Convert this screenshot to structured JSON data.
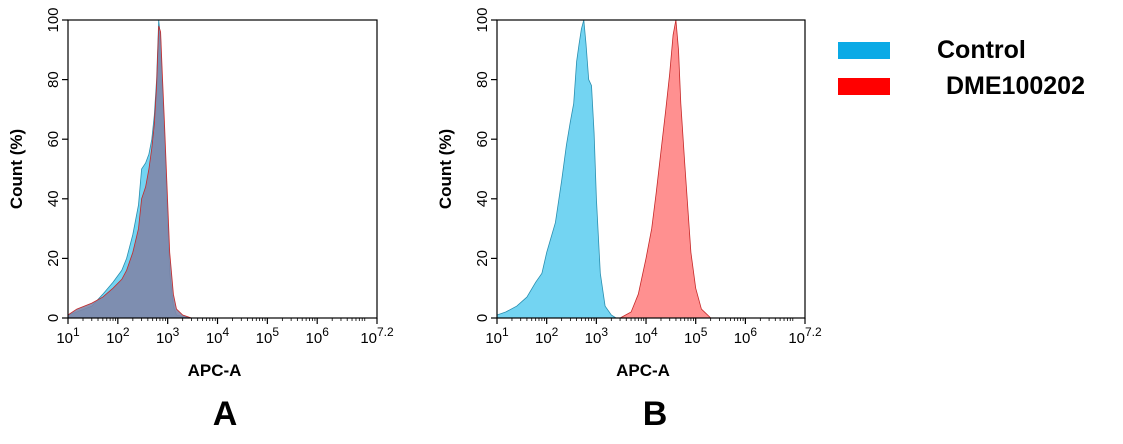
{
  "colors": {
    "control_fill": "#5bcdf0",
    "control_stroke": "#2a8fb0",
    "treated_fill": "#ff6b6b",
    "treated_stroke": "#c62828",
    "overlap_fill": "#7f86a8",
    "legend_control": "#0aaae6",
    "legend_treated": "#ff0000",
    "axis": "#000000"
  },
  "legend": {
    "items": [
      {
        "label": "Control",
        "color": "#0aaae6"
      },
      {
        "label": "DME100202",
        "color": "#ff0000"
      }
    ]
  },
  "chart_data": [
    {
      "type": "area",
      "panel_label": "A",
      "xlabel": "APC-A",
      "ylabel": "Count  (%)",
      "x_scale": "log",
      "xlim": [
        10,
        15848931.92
      ],
      "ylim": [
        0,
        100
      ],
      "x_ticks": [
        "10",
        "10",
        "10",
        "10",
        "10",
        "10",
        "10"
      ],
      "x_tick_exponents": [
        "1",
        "2",
        "3",
        "4",
        "5",
        "6",
        "7.2"
      ],
      "y_ticks": [
        "0",
        "20",
        "40",
        "60",
        "80",
        "100"
      ],
      "series": [
        {
          "name": "Control",
          "x": [
            10,
            15,
            30,
            50,
            80,
            120,
            150,
            200,
            260,
            300,
            360,
            420,
            480,
            540,
            600,
            660,
            720,
            780,
            860,
            960,
            1100,
            1300,
            1500,
            2000,
            3000
          ],
          "y": [
            1,
            2,
            4,
            8,
            12,
            16,
            20,
            28,
            38,
            50,
            52,
            55,
            60,
            68,
            80,
            100,
            94,
            78,
            62,
            40,
            15,
            4,
            1,
            0.5,
            0
          ]
        },
        {
          "name": "DME100202",
          "x": [
            10,
            15,
            30,
            50,
            80,
            120,
            150,
            200,
            260,
            300,
            360,
            420,
            480,
            540,
            600,
            660,
            720,
            780,
            860,
            960,
            1100,
            1300,
            1500,
            2000,
            3000
          ],
          "y": [
            1,
            3,
            5,
            7,
            10,
            13,
            16,
            22,
            30,
            40,
            44,
            50,
            57,
            65,
            78,
            98,
            96,
            82,
            66,
            46,
            22,
            8,
            3,
            1,
            0
          ]
        }
      ]
    },
    {
      "type": "area",
      "panel_label": "B",
      "xlabel": "APC-A",
      "ylabel": "Count  (%)",
      "x_scale": "log",
      "xlim": [
        10,
        15848931.92
      ],
      "ylim": [
        0,
        100
      ],
      "x_ticks": [
        "10",
        "10",
        "10",
        "10",
        "10",
        "10",
        "10"
      ],
      "x_tick_exponents": [
        "1",
        "2",
        "3",
        "4",
        "5",
        "6",
        "7.2"
      ],
      "y_ticks": [
        "0",
        "20",
        "40",
        "60",
        "80",
        "100"
      ],
      "series": [
        {
          "name": "Control",
          "x": [
            10,
            15,
            25,
            40,
            60,
            80,
            100,
            150,
            200,
            250,
            300,
            350,
            400,
            450,
            500,
            560,
            620,
            700,
            800,
            900,
            1000,
            1200,
            1500,
            2000,
            2500
          ],
          "y": [
            1,
            2,
            4,
            7,
            12,
            15,
            22,
            32,
            46,
            58,
            66,
            72,
            86,
            92,
            97,
            100,
            92,
            80,
            78,
            62,
            40,
            15,
            4,
            1,
            0
          ]
        },
        {
          "name": "DME100202",
          "x": [
            3000,
            5000,
            7000,
            10000,
            13000,
            16000,
            20000,
            25000,
            30000,
            35000,
            40000,
            45000,
            50000,
            60000,
            70000,
            80000,
            100000,
            130000,
            200000
          ],
          "y": [
            0,
            2,
            8,
            20,
            30,
            42,
            56,
            70,
            82,
            95,
            100,
            90,
            72,
            52,
            36,
            22,
            10,
            3,
            0
          ]
        }
      ]
    }
  ]
}
